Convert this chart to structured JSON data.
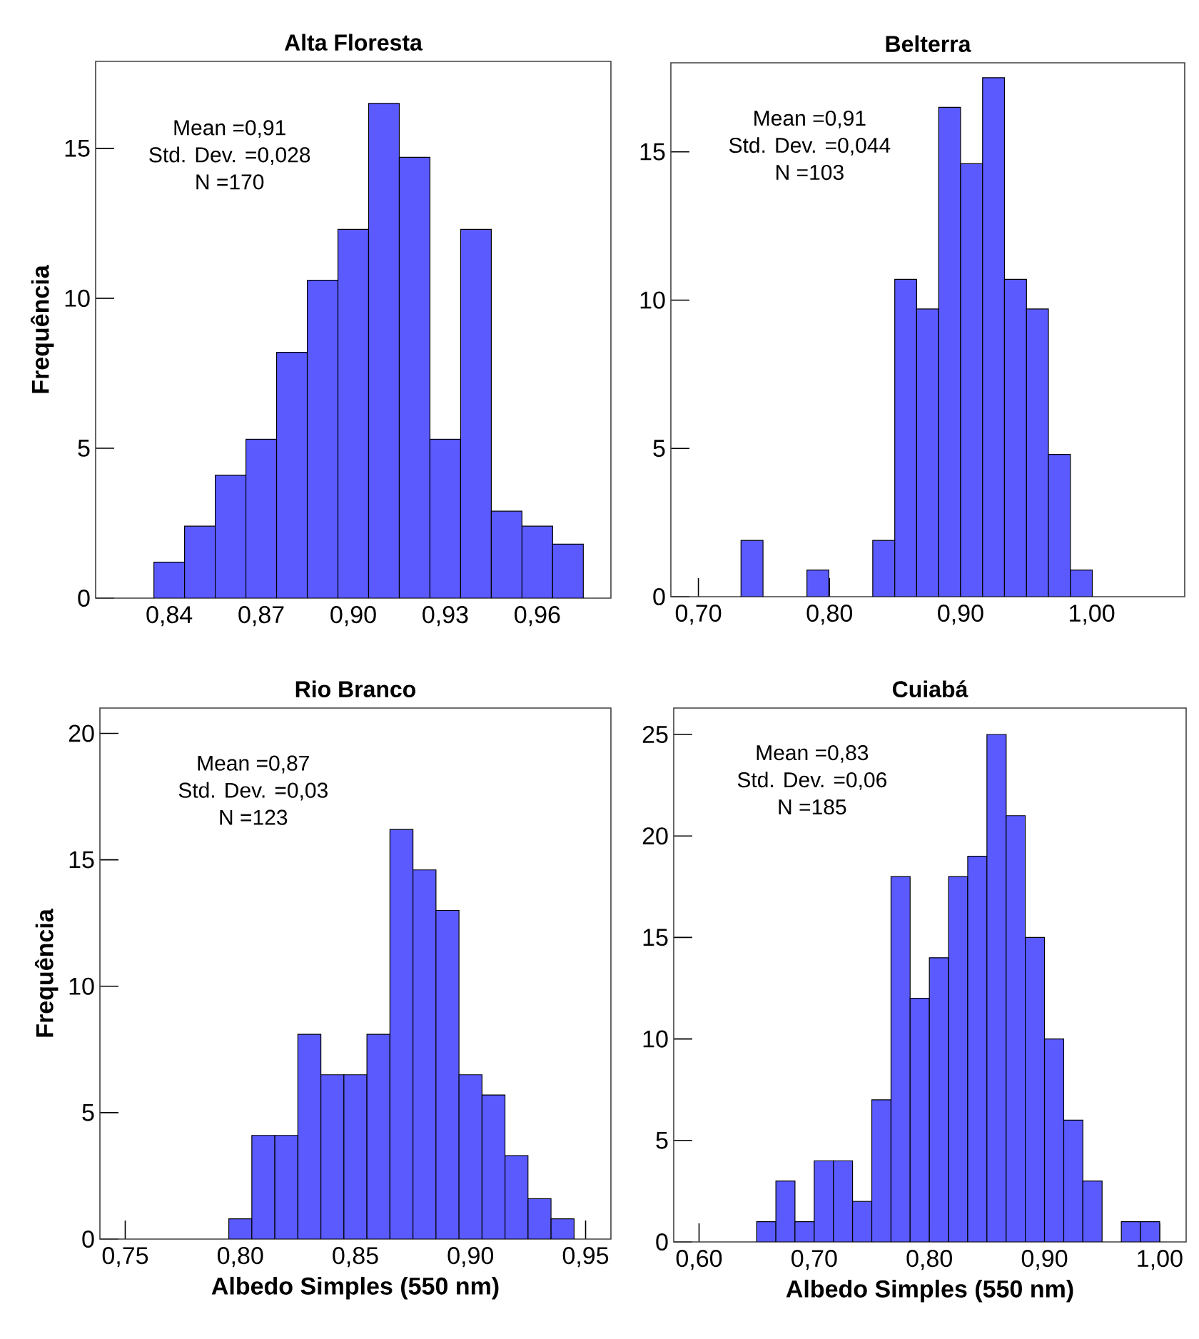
{
  "chart_data": [
    {
      "type": "histogram",
      "title": "Alta Floresta",
      "ylabel": "Frequência",
      "color": "#5a5aff",
      "bins": [
        0.835,
        0.845,
        0.855,
        0.865,
        0.875,
        0.885,
        0.895,
        0.905,
        0.915,
        0.925,
        0.935,
        0.945,
        0.955,
        0.965,
        0.975
      ],
      "values": [
        1.2,
        2.4,
        4.1,
        5.3,
        8.2,
        10.6,
        12.3,
        16.5,
        14.7,
        5.3,
        12.3,
        2.9,
        2.4,
        1.8
      ],
      "xlim": [
        0.816,
        0.984
      ],
      "ylim": [
        0,
        17.9
      ],
      "xticks": [
        {
          "value": 0.84,
          "label": "0,84"
        },
        {
          "value": 0.87,
          "label": "0,87"
        },
        {
          "value": 0.9,
          "label": "0,90"
        },
        {
          "value": 0.93,
          "label": "0,93"
        },
        {
          "value": 0.96,
          "label": "0,96"
        }
      ],
      "yticks": [
        0,
        5,
        10,
        15
      ],
      "annotations": [
        "Mean =0,91",
        "Std. Dev. =0,028",
        "N =170"
      ]
    },
    {
      "type": "histogram",
      "title": "Belterra",
      "color": "#5a5aff",
      "bins": [
        0.7325,
        0.7493,
        0.766,
        0.7828,
        0.7995,
        0.8163,
        0.833,
        0.8498,
        0.8665,
        0.8833,
        0.9,
        0.9168,
        0.9335,
        0.9503,
        0.967,
        0.9838,
        1.0005
      ],
      "values": [
        1.9,
        0,
        0,
        0.9,
        0,
        0,
        1.9,
        10.7,
        9.7,
        16.5,
        14.6,
        17.5,
        10.7,
        9.7,
        4.8,
        0.9
      ],
      "xlim": [
        0.679,
        1.071
      ],
      "ylim": [
        0,
        18
      ],
      "xticks": [
        {
          "value": 0.7,
          "label": "0,70"
        },
        {
          "value": 0.8,
          "label": "0,80"
        },
        {
          "value": 0.9,
          "label": "0,90"
        },
        {
          "value": 1.0,
          "label": "1,00"
        }
      ],
      "yticks": [
        0,
        5,
        10,
        15
      ],
      "annotations": [
        "Mean =0,91",
        "Std. Dev. =0,044",
        "N =103"
      ]
    },
    {
      "type": "histogram",
      "title": "Rio Branco",
      "ylabel": "Frequência",
      "xlabel": "Albedo Simples (550 nm)",
      "color": "#5a5aff",
      "bins": [
        0.795,
        0.805,
        0.815,
        0.825,
        0.835,
        0.845,
        0.855,
        0.865,
        0.875,
        0.885,
        0.895,
        0.905,
        0.915,
        0.925,
        0.935,
        0.945
      ],
      "values": [
        0.8,
        4.1,
        4.1,
        8.1,
        6.5,
        6.5,
        8.1,
        16.2,
        14.6,
        13.0,
        6.5,
        5.7,
        3.3,
        1.6,
        0.8
      ],
      "xlim": [
        0.739,
        0.961
      ],
      "ylim": [
        0,
        21
      ],
      "xticks": [
        {
          "value": 0.75,
          "label": "0,75"
        },
        {
          "value": 0.8,
          "label": "0,80"
        },
        {
          "value": 0.85,
          "label": "0,85"
        },
        {
          "value": 0.9,
          "label": "0,90"
        },
        {
          "value": 0.95,
          "label": "0,95"
        }
      ],
      "yticks": [
        0,
        5,
        10,
        15,
        20
      ],
      "annotations": [
        "Mean =0,87",
        "Std. Dev. =0,03",
        "N =123"
      ]
    },
    {
      "type": "histogram",
      "title": "Cuiabá",
      "xlabel": "Albedo Simples (550 nm)",
      "color": "#5a5aff",
      "bins": [
        0.65,
        0.6667,
        0.6833,
        0.7,
        0.7167,
        0.7333,
        0.75,
        0.7667,
        0.7833,
        0.8,
        0.8167,
        0.8333,
        0.85,
        0.8667,
        0.8833,
        0.9,
        0.9167,
        0.9333,
        0.95,
        0.9667,
        0.9833,
        1.0
      ],
      "values": [
        1,
        3,
        1,
        4,
        4,
        2,
        7,
        18,
        12,
        14,
        18,
        19,
        25,
        21,
        15,
        10,
        6,
        3,
        0,
        1,
        1
      ],
      "xlim": [
        0.578,
        1.023
      ],
      "ylim": [
        0,
        26.3
      ],
      "xticks": [
        {
          "value": 0.6,
          "label": "0,60"
        },
        {
          "value": 0.7,
          "label": "0,70"
        },
        {
          "value": 0.8,
          "label": "0,80"
        },
        {
          "value": 0.9,
          "label": "0,90"
        },
        {
          "value": 1.0,
          "label": "1,00"
        }
      ],
      "yticks": [
        0,
        5,
        10,
        15,
        20,
        25
      ],
      "annotations": [
        "Mean =0,83",
        "Std. Dev. =0,06",
        "N =185"
      ]
    }
  ]
}
